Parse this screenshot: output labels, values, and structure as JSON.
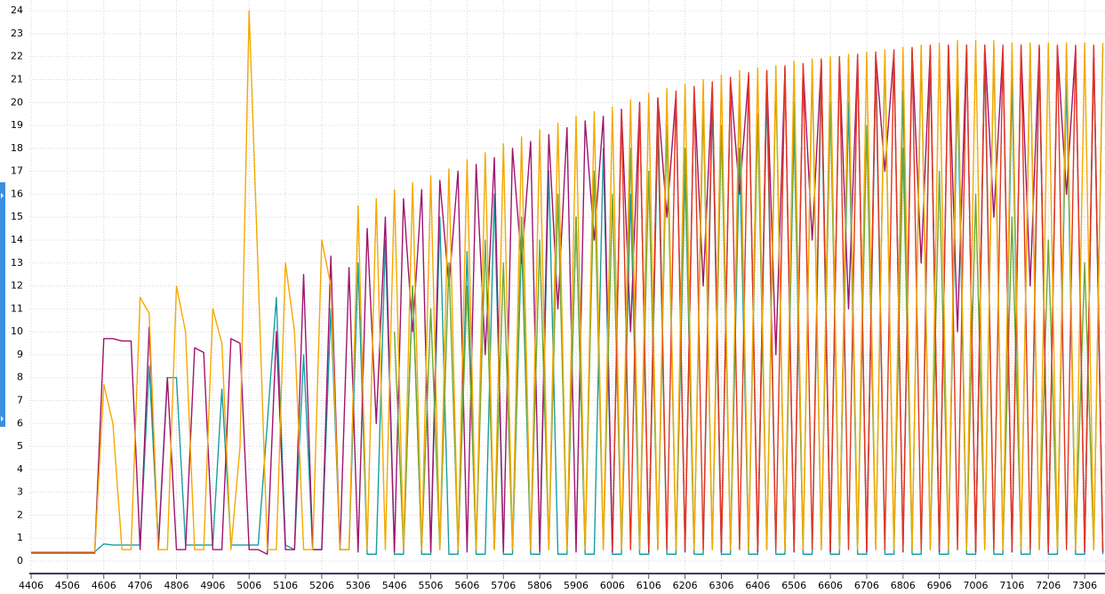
{
  "chart_data": {
    "type": "line",
    "grid": true,
    "x": [
      4406,
      4431,
      4456,
      4481,
      4506,
      4531,
      4556,
      4581,
      4606,
      4631,
      4656,
      4681,
      4706,
      4731,
      4756,
      4781,
      4806,
      4831,
      4856,
      4881,
      4906,
      4931,
      4956,
      4981,
      5006,
      5031,
      5056,
      5081,
      5106,
      5131,
      5156,
      5181,
      5206,
      5231,
      5256,
      5281,
      5306,
      5331,
      5356,
      5381,
      5406,
      5431,
      5456,
      5481,
      5506,
      5531,
      5556,
      5581,
      5606,
      5631,
      5656,
      5681,
      5706,
      5731,
      5756,
      5781,
      5806,
      5831,
      5856,
      5881,
      5906,
      5931,
      5956,
      5981,
      6006,
      6031,
      6056,
      6081,
      6106,
      6131,
      6156,
      6181,
      6206,
      6231,
      6256,
      6281,
      6306,
      6331,
      6356,
      6381,
      6406,
      6431,
      6456,
      6481,
      6506,
      6531,
      6556,
      6581,
      6606,
      6631,
      6656,
      6681,
      6706,
      6731,
      6756,
      6781,
      6806,
      6831,
      6856,
      6881,
      6906,
      6931,
      6956,
      6981,
      7006,
      7031,
      7056,
      7081,
      7106,
      7131,
      7156,
      7181,
      7206,
      7231,
      7256,
      7281,
      7306,
      7331,
      7356
    ],
    "series": [
      {
        "color": "#1a9e9e",
        "values": [
          0.4,
          0.4,
          0.4,
          0.4,
          0.4,
          0.4,
          0.4,
          0.4,
          0.75,
          0.7,
          0.7,
          0.7,
          0.7,
          8.5,
          0.7,
          8,
          8,
          0.7,
          0.7,
          0.7,
          0.7,
          7.5,
          0.7,
          0.7,
          0.7,
          0.7,
          6,
          11.5,
          0.7,
          0.5,
          9,
          0.5,
          0.5,
          11,
          0.5,
          0.5,
          13,
          0.3,
          0.3,
          14,
          0.3,
          0.3,
          12,
          0.3,
          0.3,
          15,
          0.3,
          0.3,
          13.5,
          0.3,
          0.3,
          16,
          0.3,
          0.3,
          14,
          0.3,
          0.3,
          17,
          0.3,
          0.3,
          15,
          0.3,
          0.3,
          18,
          0.3,
          0.3,
          16,
          0.3,
          0.3,
          19,
          0.3,
          0.3,
          17,
          0.3,
          0.3,
          20,
          0.3,
          0.3,
          18,
          0.3,
          0.3,
          20.5,
          0.3,
          0.3,
          19,
          0.3,
          0.3,
          21,
          0.3,
          0.3,
          20,
          0.3,
          0.3,
          21.5,
          0.3,
          0.3,
          20.5,
          0.3,
          0.3,
          22,
          0.3,
          0.3,
          21,
          0.3,
          0.3,
          22,
          0.3,
          0.3,
          21,
          0.3,
          0.3,
          22,
          0.3,
          0.3,
          21,
          0.3,
          0.3,
          22,
          0.3
        ]
      },
      {
        "color": "#a0146e",
        "values": [
          0.35,
          0.35,
          0.35,
          0.35,
          0.35,
          0.35,
          0.35,
          0.35,
          9.7,
          9.7,
          9.6,
          9.6,
          0.5,
          10.2,
          0.5,
          8,
          0.5,
          0.5,
          9.3,
          9.1,
          0.5,
          0.5,
          9.7,
          9.5,
          0.5,
          0.5,
          0.3,
          10,
          0.5,
          0.5,
          12.5,
          0.5,
          0.5,
          13.3,
          0.5,
          12.8,
          0.4,
          14.5,
          6,
          15,
          0.4,
          15.8,
          10,
          16.2,
          0.4,
          16.6,
          12,
          17,
          0.4,
          17.3,
          9,
          17.6,
          0.4,
          18,
          13,
          18.3,
          0.4,
          18.6,
          11,
          18.9,
          0.4,
          19.2,
          14,
          19.4,
          0.4,
          19.7,
          10,
          20,
          0.4,
          20.2,
          15,
          20.4,
          0.4,
          20.6,
          12,
          20.8,
          0.4,
          21,
          16,
          21.2,
          0.4,
          21.3,
          9,
          21.5,
          0.4,
          21.6,
          14,
          21.8,
          0.4,
          21.9,
          11,
          22,
          0.4,
          22.1,
          17,
          22.2,
          0.4,
          22.3,
          13,
          22.4,
          0.4,
          22.5,
          10,
          22.5,
          0.4,
          22.5,
          15,
          22.4,
          0.4,
          22.4,
          12,
          22.4,
          0.4,
          22.4,
          16,
          22.4,
          0.4,
          22.4,
          0.4
        ]
      },
      {
        "color": "#6fa832",
        "values": [
          null,
          null,
          null,
          null,
          null,
          null,
          null,
          null,
          null,
          null,
          null,
          null,
          null,
          null,
          null,
          null,
          null,
          null,
          null,
          null,
          null,
          null,
          null,
          null,
          null,
          null,
          null,
          null,
          null,
          null,
          null,
          null,
          null,
          null,
          null,
          null,
          null,
          null,
          null,
          null,
          10,
          0.5,
          12,
          0.5,
          11,
          0.5,
          13,
          0.5,
          12,
          0.5,
          14,
          0.5,
          13,
          0.5,
          15,
          0.5,
          14,
          0.5,
          16,
          0.5,
          15,
          0.5,
          17,
          0.5,
          16,
          0.5,
          18,
          0.5,
          17,
          0.5,
          19,
          0.5,
          18,
          0.5,
          20,
          0.5,
          19,
          0.5,
          20.5,
          0.5,
          19.5,
          0.5,
          21,
          0.5,
          20,
          0.5,
          21.5,
          0.5,
          20,
          0.5,
          22,
          0.5,
          19,
          0.5,
          22,
          0.5,
          18,
          0.5,
          22.2,
          0.5,
          17,
          0.5,
          22.4,
          0.5,
          16,
          0.5,
          22.4,
          0.5,
          15,
          0.5,
          22.4,
          0.5,
          14,
          0.5,
          22.4,
          0.5,
          13,
          0.5,
          22.4
        ]
      },
      {
        "color": "#e3361e",
        "values": [
          null,
          null,
          null,
          null,
          null,
          null,
          null,
          null,
          null,
          null,
          null,
          null,
          null,
          null,
          null,
          null,
          null,
          null,
          null,
          null,
          null,
          null,
          null,
          null,
          null,
          null,
          null,
          null,
          null,
          null,
          null,
          null,
          null,
          null,
          null,
          null,
          null,
          null,
          null,
          null,
          null,
          null,
          null,
          null,
          null,
          null,
          null,
          null,
          null,
          null,
          null,
          null,
          null,
          null,
          null,
          null,
          null,
          null,
          null,
          null,
          null,
          null,
          null,
          null,
          0.5,
          19.6,
          0.5,
          19.9,
          0.5,
          20.2,
          0.5,
          20.5,
          0.5,
          20.7,
          0.5,
          20.9,
          0.5,
          21.1,
          0.5,
          21.3,
          0.5,
          21.4,
          0.5,
          21.6,
          0.5,
          21.7,
          0.5,
          21.9,
          0.5,
          22,
          0.5,
          22.1,
          0.5,
          22.2,
          0.5,
          22.3,
          0.5,
          22.4,
          0.5,
          22.5,
          0.5,
          22.5,
          0.5,
          22.5,
          0.5,
          22.5,
          0.5,
          22.5,
          0.5,
          22.5,
          0.5,
          22.5,
          0.5,
          22.5,
          0.5,
          22.5,
          0.5,
          22.5,
          0.5
        ]
      },
      {
        "color": "#f5a800",
        "values": [
          0.4,
          0.4,
          0.4,
          0.4,
          0.4,
          0.4,
          0.4,
          0.4,
          7.7,
          6,
          0.5,
          0.5,
          11.5,
          10.8,
          0.5,
          0.5,
          12,
          10,
          0.5,
          0.5,
          11,
          9.5,
          0.5,
          5,
          24,
          12.5,
          0.5,
          0.5,
          13,
          10,
          0.5,
          0.5,
          14,
          12,
          0.5,
          0.5,
          15.5,
          0.5,
          15.8,
          0.5,
          16.2,
          0.5,
          16.5,
          0.5,
          16.8,
          0.5,
          17.1,
          0.5,
          17.5,
          0.5,
          17.8,
          0.5,
          18.2,
          0.5,
          18.5,
          0.5,
          18.8,
          0.5,
          19.1,
          0.5,
          19.4,
          0.5,
          19.6,
          0.5,
          19.8,
          0.5,
          20.1,
          0.5,
          20.4,
          0.5,
          20.6,
          0.5,
          20.8,
          0.5,
          21,
          0.5,
          21.2,
          0.5,
          21.4,
          0.5,
          21.5,
          0.5,
          21.6,
          0.5,
          21.8,
          0.5,
          21.9,
          0.5,
          22,
          0.5,
          22.1,
          0.5,
          22.2,
          0.5,
          22.3,
          0.5,
          22.4,
          0.5,
          22.5,
          0.5,
          22.6,
          0.5,
          22.7,
          0.5,
          22.7,
          0.5,
          22.7,
          0.5,
          22.6,
          0.5,
          22.6,
          0.5,
          22.6,
          0.5,
          22.6,
          0.5,
          22.6,
          0.5,
          22.6
        ]
      }
    ],
    "xlim": [
      4401,
      7362
    ],
    "xticks": [
      4406,
      4506,
      4606,
      4706,
      4806,
      4906,
      5006,
      5106,
      5206,
      5306,
      5406,
      5506,
      5606,
      5706,
      5806,
      5906,
      6006,
      6106,
      6206,
      6306,
      6406,
      6506,
      6606,
      6706,
      6806,
      6906,
      7006,
      7106,
      7206,
      7306
    ],
    "ylim": [
      -0.35,
      24.47
    ],
    "yticks": [
      0,
      1,
      2,
      3,
      4,
      5,
      6,
      7,
      8,
      9,
      10,
      11,
      12,
      13,
      14,
      15,
      16,
      17,
      18,
      19,
      20,
      21,
      22,
      23,
      24
    ]
  }
}
